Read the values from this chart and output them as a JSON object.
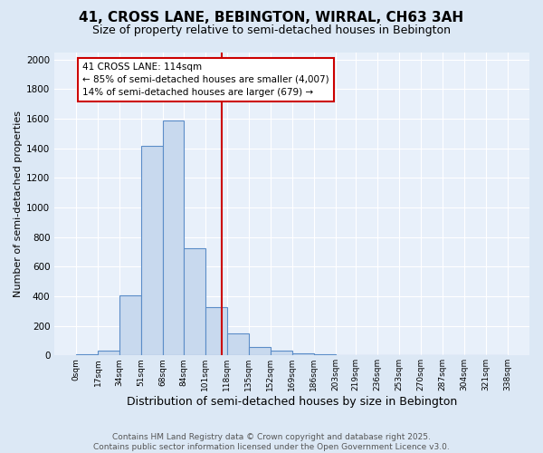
{
  "title1": "41, CROSS LANE, BEBINGTON, WIRRAL, CH63 3AH",
  "title2": "Size of property relative to semi-detached houses in Bebington",
  "xlabel": "Distribution of semi-detached houses by size in Bebington",
  "ylabel": "Number of semi-detached properties",
  "bin_edges": [
    0,
    17,
    34,
    51,
    68,
    84,
    101,
    118,
    135,
    152,
    169,
    186,
    203,
    219,
    236,
    253,
    270,
    287,
    304,
    321,
    338
  ],
  "bin_labels": [
    "0sqm",
    "17sqm",
    "34sqm",
    "51sqm",
    "68sqm",
    "84sqm",
    "101sqm",
    "118sqm",
    "135sqm",
    "152sqm",
    "169sqm",
    "186sqm",
    "203sqm",
    "219sqm",
    "236sqm",
    "253sqm",
    "270sqm",
    "287sqm",
    "304sqm",
    "321sqm",
    "338sqm"
  ],
  "counts": [
    10,
    35,
    405,
    1415,
    1590,
    725,
    325,
    150,
    55,
    35,
    15,
    8,
    3,
    2,
    1,
    0,
    0,
    0,
    0,
    0
  ],
  "bar_facecolor": "#c8d9ee",
  "bar_edgecolor": "#5b8dc8",
  "vline_x": 114,
  "vline_color": "#cc0000",
  "annotation_text": "41 CROSS LANE: 114sqm\n← 85% of semi-detached houses are smaller (4,007)\n14% of semi-detached houses are larger (679) →",
  "annotation_box_edgecolor": "#cc0000",
  "annotation_box_facecolor": "white",
  "ylim": [
    0,
    2050
  ],
  "yticks": [
    0,
    200,
    400,
    600,
    800,
    1000,
    1200,
    1400,
    1600,
    1800,
    2000
  ],
  "bg_color": "#dce8f5",
  "plot_bg_color": "#e8f0fa",
  "footer": "Contains HM Land Registry data © Crown copyright and database right 2025.\nContains public sector information licensed under the Open Government Licence v3.0.",
  "title1_fontsize": 11,
  "title2_fontsize": 9,
  "xlabel_fontsize": 9,
  "ylabel_fontsize": 8,
  "footer_fontsize": 6.5,
  "annotation_fontsize": 7.5
}
